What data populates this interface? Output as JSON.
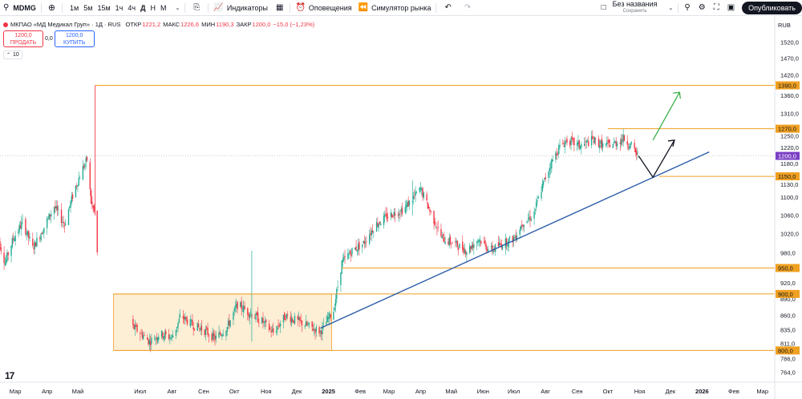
{
  "toolbar": {
    "symbol": "MDMG",
    "timeframes": [
      "1м",
      "5м",
      "15м",
      "1ч",
      "4ч",
      "Д",
      "Н",
      "М"
    ],
    "active_timeframe": "Д",
    "indicators_label": "Индикаторы",
    "alerts_label": "Оповещения",
    "replay_label": "Симулятор рынка",
    "layout_name": "Без названия",
    "layout_status": "Сохранить",
    "publish_label": "Опубликовать"
  },
  "legend": {
    "title": "МКПАО «МД Медикал Груп» · 1Д · RUS",
    "open_label": "ОТКР",
    "open": "1221,2",
    "high_label": "МАКС",
    "high": "1226,6",
    "low_label": "МИН",
    "low": "1190,3",
    "close_label": "ЗАКР",
    "close": "1200,0",
    "change": "−15,0 (−1,23%)",
    "sell_price": "1200,0",
    "sell_label": "ПРОДАТЬ",
    "spread": "0,0",
    "buy_price": "1200,0",
    "buy_label": "КУПИТЬ",
    "volume_chip": "10"
  },
  "currency": "RUB",
  "colors": {
    "up": "#22ab94",
    "down": "#f23645",
    "level": "#f0a020",
    "trend": "#2a5ca8",
    "green_arrow": "#3cb04a",
    "price_badge": "#7b3fc4"
  },
  "chart_data": {
    "type": "candlestick",
    "y_scale": "log",
    "ylim": [
      750,
      1560
    ],
    "y_ticks": [
      {
        "v": 1520,
        "t": "1520,0"
      },
      {
        "v": 1470,
        "t": "1470,0"
      },
      {
        "v": 1420,
        "t": "1420,0"
      },
      {
        "v": 1360,
        "t": "1360,0"
      },
      {
        "v": 1310,
        "t": "1310,0"
      },
      {
        "v": 1250,
        "t": "1250,0"
      },
      {
        "v": 1220,
        "t": "1220,0"
      },
      {
        "v": 1180,
        "t": "1180,0"
      },
      {
        "v": 1130,
        "t": "1130,0"
      },
      {
        "v": 1100,
        "t": "1100,0"
      },
      {
        "v": 1060,
        "t": "1060,0"
      },
      {
        "v": 1020,
        "t": "1020,0"
      },
      {
        "v": 980,
        "t": "980,0"
      },
      {
        "v": 920,
        "t": "920,0"
      },
      {
        "v": 890,
        "t": "890,0"
      },
      {
        "v": 860,
        "t": "860,0"
      },
      {
        "v": 835,
        "t": "835,0"
      },
      {
        "v": 811,
        "t": "811,0"
      },
      {
        "v": 786,
        "t": "786,0"
      },
      {
        "v": 764,
        "t": "764,0"
      }
    ],
    "x_ticks": [
      {
        "d": "2024-03-01",
        "t": "Мар",
        "bold": false
      },
      {
        "d": "2024-04-01",
        "t": "Апр",
        "bold": false
      },
      {
        "d": "2024-05-01",
        "t": "Май",
        "bold": false
      },
      {
        "d": "2024-07-01",
        "t": "Июл",
        "bold": false
      },
      {
        "d": "2024-08-01",
        "t": "Авг",
        "bold": false
      },
      {
        "d": "2024-09-01",
        "t": "Сен",
        "bold": false
      },
      {
        "d": "2024-10-01",
        "t": "Окт",
        "bold": false
      },
      {
        "d": "2024-11-01",
        "t": "Ноя",
        "bold": false
      },
      {
        "d": "2024-12-01",
        "t": "Дек",
        "bold": false
      },
      {
        "d": "2025-01-01",
        "t": "2025",
        "bold": true
      },
      {
        "d": "2025-02-01",
        "t": "Фев",
        "bold": false
      },
      {
        "d": "2025-03-01",
        "t": "Мар",
        "bold": false
      },
      {
        "d": "2025-04-01",
        "t": "Апр",
        "bold": false
      },
      {
        "d": "2025-05-01",
        "t": "Май",
        "bold": false
      },
      {
        "d": "2025-06-01",
        "t": "Июн",
        "bold": false
      },
      {
        "d": "2025-07-01",
        "t": "Июл",
        "bold": false
      },
      {
        "d": "2025-08-01",
        "t": "Авг",
        "bold": false
      },
      {
        "d": "2025-09-01",
        "t": "Сен",
        "bold": false
      },
      {
        "d": "2025-10-01",
        "t": "Окт",
        "bold": false
      },
      {
        "d": "2025-11-01",
        "t": "Ноя",
        "bold": false
      },
      {
        "d": "2025-12-01",
        "t": "Дек",
        "bold": false
      },
      {
        "d": "2026-01-01",
        "t": "2026",
        "bold": true
      },
      {
        "d": "2026-02-01",
        "t": "Фев",
        "bold": false
      },
      {
        "d": "2026-03-01",
        "t": "Мар",
        "bold": false
      }
    ],
    "price_path": [
      [
        "2024-02-12",
        1020
      ],
      [
        "2024-02-20",
        960
      ],
      [
        "2024-02-28",
        1010
      ],
      [
        "2024-03-08",
        1045
      ],
      [
        "2024-03-18",
        990
      ],
      [
        "2024-03-28",
        1030
      ],
      [
        "2024-04-08",
        1080
      ],
      [
        "2024-04-18",
        1040
      ],
      [
        "2024-04-28",
        1120
      ],
      [
        "2024-05-06",
        1170
      ],
      [
        "2024-05-10",
        1190
      ],
      [
        "2024-05-14",
        1090
      ],
      [
        "2024-05-18",
        1060
      ],
      [
        "2024-05-20",
        980
      ],
      [
        "2024-06-24",
        840
      ],
      [
        "2024-07-01",
        830
      ],
      [
        "2024-07-10",
        815
      ],
      [
        "2024-07-20",
        828
      ],
      [
        "2024-08-01",
        822
      ],
      [
        "2024-08-10",
        860
      ],
      [
        "2024-08-20",
        845
      ],
      [
        "2024-09-01",
        835
      ],
      [
        "2024-09-12",
        820
      ],
      [
        "2024-09-24",
        840
      ],
      [
        "2024-10-04",
        880
      ],
      [
        "2024-10-16",
        865
      ],
      [
        "2024-10-28",
        850
      ],
      [
        "2024-11-08",
        830
      ],
      [
        "2024-11-20",
        860
      ],
      [
        "2024-12-02",
        850
      ],
      [
        "2024-12-14",
        840
      ],
      [
        "2024-12-24",
        832
      ],
      [
        "2025-01-06",
        870
      ],
      [
        "2025-01-14",
        960
      ],
      [
        "2025-01-24",
        985
      ],
      [
        "2025-02-04",
        1000
      ],
      [
        "2025-02-16",
        1040
      ],
      [
        "2025-03-01",
        1060
      ],
      [
        "2025-03-16",
        1075
      ],
      [
        "2025-04-01",
        1120
      ],
      [
        "2025-04-10",
        1070
      ],
      [
        "2025-04-22",
        1010
      ],
      [
        "2025-05-04",
        1000
      ],
      [
        "2025-05-16",
        985
      ],
      [
        "2025-05-28",
        1010
      ],
      [
        "2025-06-08",
        985
      ],
      [
        "2025-06-20",
        1000
      ],
      [
        "2025-07-01",
        1010
      ],
      [
        "2025-07-10",
        1045
      ],
      [
        "2025-07-20",
        1060
      ],
      [
        "2025-07-28",
        1120
      ],
      [
        "2025-08-06",
        1180
      ],
      [
        "2025-08-14",
        1220
      ],
      [
        "2025-08-22",
        1240
      ],
      [
        "2025-09-04",
        1225
      ],
      [
        "2025-09-16",
        1240
      ],
      [
        "2025-09-28",
        1225
      ],
      [
        "2025-10-08",
        1232
      ],
      [
        "2025-10-16",
        1245
      ],
      [
        "2025-10-24",
        1225
      ],
      [
        "2025-10-30",
        1200
      ]
    ],
    "levels": [
      {
        "price": 1390,
        "label": "1390,0",
        "from": "2024-05-18"
      },
      {
        "price": 1270,
        "label": "1270,0",
        "from": "2025-10-01"
      },
      {
        "price": 1150,
        "label": "1150,0",
        "from": "2025-11-20"
      },
      {
        "price": 950,
        "label": "950,0",
        "from": "2025-01-14"
      },
      {
        "price": 900,
        "label": "900,0",
        "from": "2024-06-05"
      },
      {
        "price": 800,
        "label": "800,0",
        "from": "2024-06-05"
      }
    ],
    "consolidation_zone": {
      "from": "2024-06-05",
      "to": "2025-01-04",
      "high": 900,
      "low": 800
    },
    "spike_line": {
      "date": "2024-05-18",
      "low": 1060,
      "high": 1390
    },
    "trendline": {
      "start": [
        "2024-12-24",
        838
      ],
      "end": [
        "2026-01-08",
        1210
      ]
    },
    "projection_black": [
      [
        "2025-10-31",
        1200
      ],
      [
        "2025-11-14",
        1148
      ],
      [
        "2025-12-05",
        1240
      ]
    ],
    "projection_green": [
      [
        "2025-11-14",
        1240
      ],
      [
        "2025-12-10",
        1370
      ]
    ],
    "last_price": {
      "value": 1200,
      "label": "1200,0"
    }
  }
}
